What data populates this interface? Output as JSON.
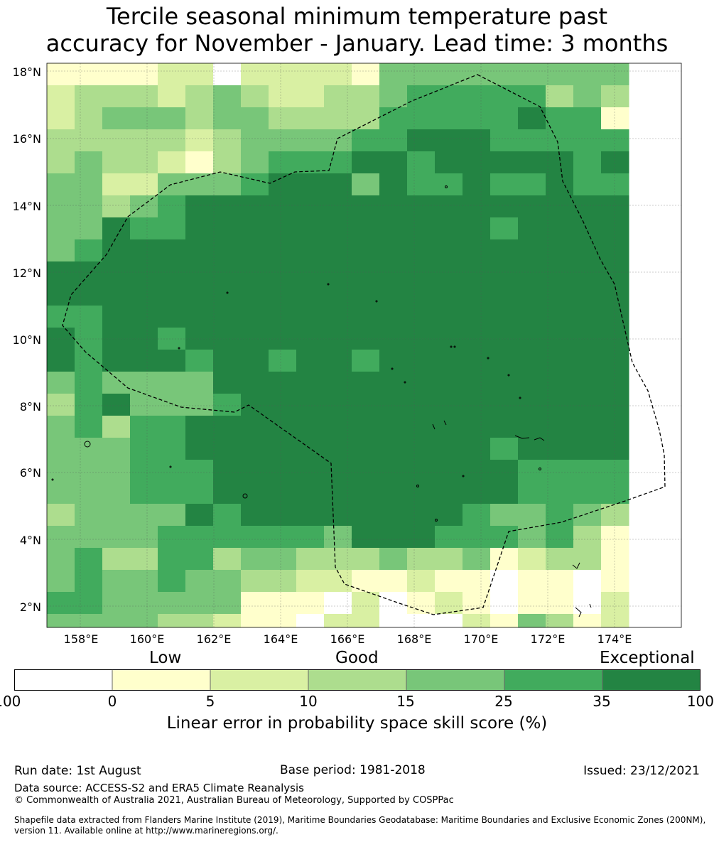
{
  "title": {
    "line1": "Tercile seasonal minimum temperature past",
    "line2": "accuracy for November - January. Lead time: 3 months"
  },
  "map": {
    "lat_labels": [
      "18°N",
      "16°N",
      "14°N",
      "12°N",
      "10°N",
      "8°N",
      "6°N",
      "4°N",
      "2°N"
    ],
    "lon_labels": [
      "158°E",
      "160°E",
      "162°E",
      "164°E",
      "166°E",
      "168°E",
      "170°E",
      "172°E",
      "174°E"
    ],
    "lon_range": [
      157.0,
      176.0
    ],
    "lat_range": [
      1.5,
      18.3
    ],
    "cell_size_deg": 0.833,
    "skill_grid": [
      "111122022221444444444",
      "233323432233455555343",
      "234443443333555556551",
      "333332344445566655555",
      "343321345556656666656",
      "442244456664655655655",
      "443456666666666666666",
      "446556666666666656666",
      "456666666666666666666",
      "666666666666666666666",
      "666666666666666666666",
      "556666666666666666666",
      "656656666666666666666",
      "656665665665666666666",
      "454444666666666666666",
      "356444566666666666666",
      "453556666666666666666",
      "444556666666666656666",
      "444555666666666665555",
      "444555666666666665555",
      "344446566666666544543",
      "444455555546665554531",
      "453355344333433412331",
      "454454433221121101101",
      "554444411102012101102",
      "444433211022000214312"
    ]
  },
  "colorbar": {
    "headers": {
      "low": "Low",
      "good": "Good",
      "exceptional": "Exceptional"
    },
    "ticks": [
      "-100",
      "0",
      "5",
      "10",
      "15",
      "25",
      "35",
      "100"
    ],
    "colors": [
      "#ffffff",
      "#ffffcc",
      "#d9f0a3",
      "#addd8e",
      "#78c679",
      "#41ab5d",
      "#238443"
    ],
    "label": "Linear error in probability space skill score (%)"
  },
  "footer": {
    "run_date": "Run date: 1st August",
    "base_period": "Base period: 1981-2018",
    "issued": "Issued: 23/12/2021",
    "data_source": "Data source: ACCESS-S2 and ERA5 Climate Reanalysis",
    "copyright": "© Commonwealth of Australia 2021, Australian Bureau of Meteorology, Supported by COSPPac",
    "shapefile_line1": "Shapefile data extracted from Flanders Marine Institute (2019), Maritime Boundaries Geodatabase: Maritime Boundaries and Exclusive Economic Zones (200NM),",
    "shapefile_line2": "version 11. Available online at http://www.marineregions.org/."
  }
}
